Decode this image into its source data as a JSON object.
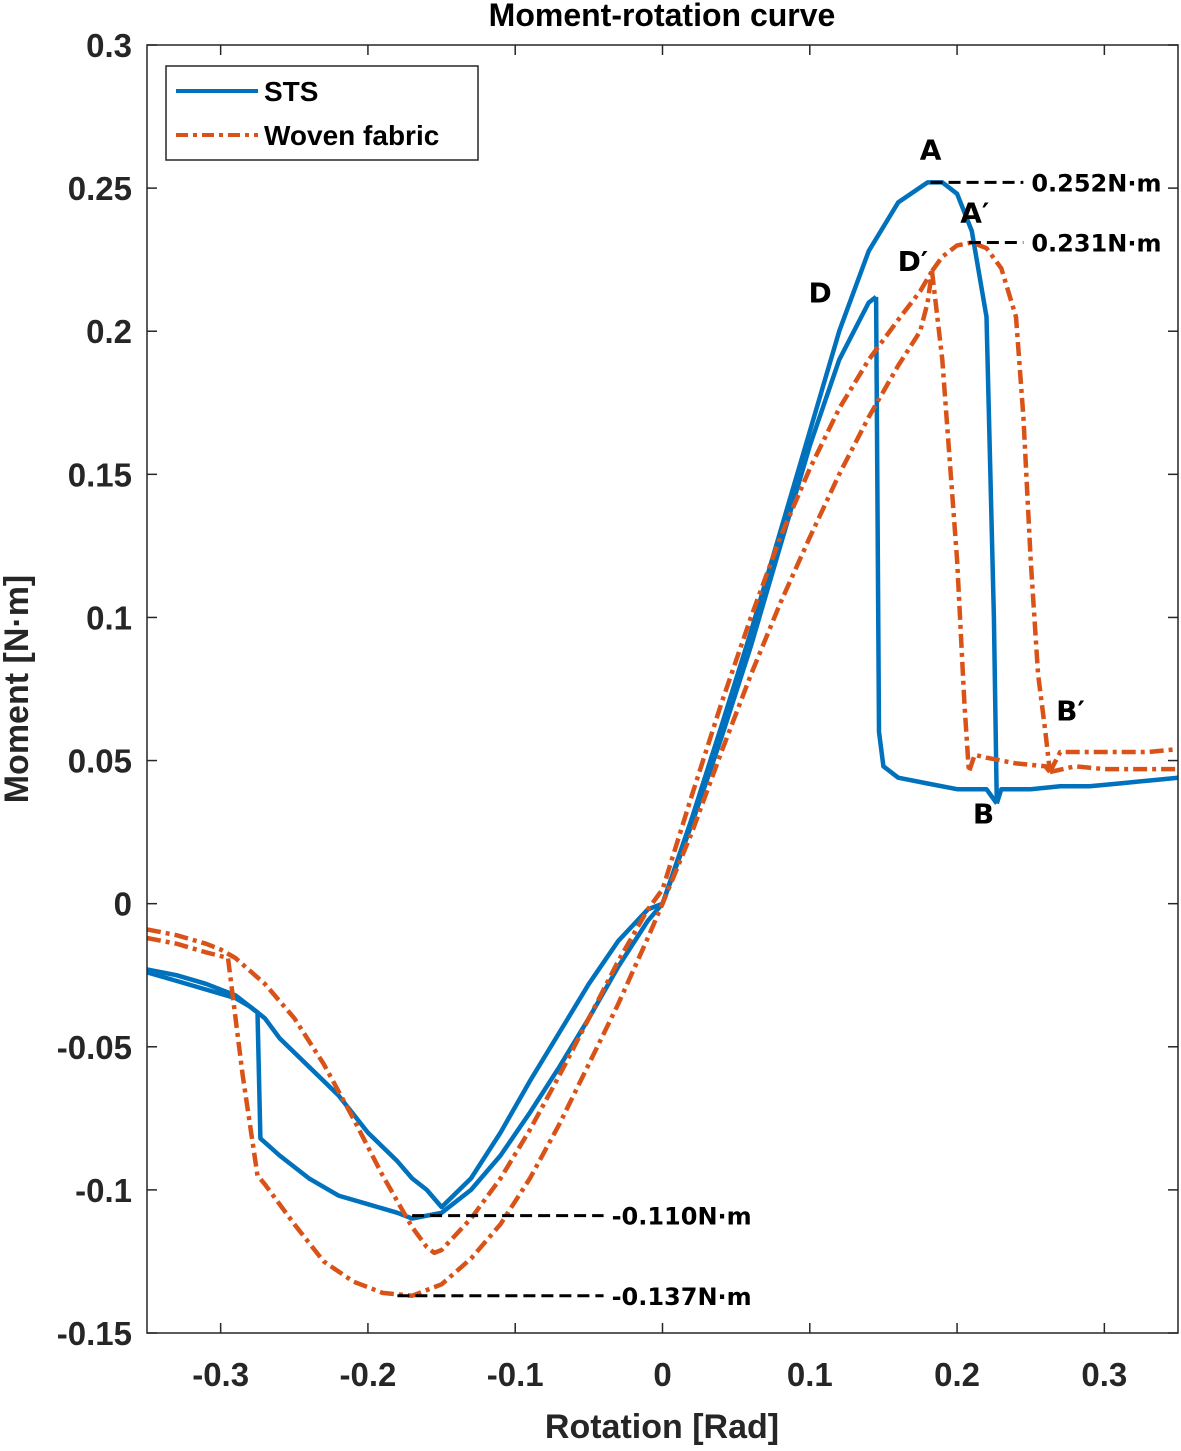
{
  "chart_data": {
    "type": "line",
    "title": "Moment-rotation curve",
    "xlabel": "Rotation [Rad]",
    "ylabel": "Moment [N·m]",
    "xlim": [
      -0.35,
      0.35
    ],
    "ylim": [
      -0.15,
      0.3
    ],
    "xticks": [
      -0.3,
      -0.2,
      -0.1,
      0,
      0.1,
      0.2,
      0.3
    ],
    "xtick_labels": [
      "-0.3",
      "-0.2",
      "-0.1",
      "0",
      "0.1",
      "0.2",
      "0.3"
    ],
    "yticks": [
      -0.15,
      -0.1,
      -0.05,
      0,
      0.05,
      0.1,
      0.15,
      0.2,
      0.25,
      0.3
    ],
    "ytick_labels": [
      "-0.15",
      "-0.1",
      "-0.05",
      "0",
      "0.05",
      "0.1",
      "0.15",
      "0.2",
      "0.25",
      "0.3"
    ],
    "grid": false,
    "legend": {
      "position": "top-left",
      "entries": [
        "STS",
        "Woven fabric"
      ]
    },
    "series": [
      {
        "name": "STS",
        "color": "#0072BD",
        "style": "solid",
        "segments": [
          {
            "x": [
              -0.35,
              -0.33,
              -0.31,
              -0.29,
              -0.28,
              -0.275,
              -0.27,
              -0.26,
              -0.24,
              -0.22,
              -0.2,
              -0.18,
              -0.17,
              -0.16,
              -0.15,
              -0.13,
              -0.11,
              -0.09,
              -0.07,
              -0.05,
              -0.03,
              -0.01,
              0.0,
              0.02,
              0.04,
              0.06,
              0.08,
              0.1,
              0.12,
              0.135,
              0.14,
              0.145
            ],
            "y": [
              -0.023,
              -0.025,
              -0.028,
              -0.032,
              -0.036,
              -0.038,
              -0.04,
              -0.047,
              -0.057,
              -0.067,
              -0.08,
              -0.09,
              -0.096,
              -0.1,
              -0.106,
              -0.096,
              -0.08,
              -0.062,
              -0.045,
              -0.028,
              -0.013,
              -0.002,
              0.0,
              0.028,
              0.058,
              0.09,
              0.125,
              0.16,
              0.19,
              0.205,
              0.21,
              0.212
            ]
          },
          {
            "x": [
              0.145,
              0.147,
              0.15,
              0.16,
              0.18,
              0.2,
              0.22,
              0.227
            ],
            "y": [
              0.212,
              0.06,
              0.048,
              0.044,
              0.042,
              0.04,
              0.04,
              0.035
            ]
          },
          {
            "x": [
              0.227,
              0.23,
              0.25,
              0.27,
              0.29,
              0.31,
              0.33,
              0.35
            ],
            "y": [
              0.035,
              0.04,
              0.04,
              0.041,
              0.041,
              0.042,
              0.043,
              0.044
            ]
          },
          {
            "x": [
              -0.35,
              -0.33,
              -0.31,
              -0.29,
              -0.28,
              -0.275,
              -0.273,
              -0.26,
              -0.24,
              -0.22,
              -0.2,
              -0.18,
              -0.17,
              -0.15,
              -0.13,
              -0.11,
              -0.09,
              -0.07,
              -0.05,
              -0.03,
              -0.01,
              0.0,
              0.02,
              0.04,
              0.06,
              0.08,
              0.1,
              0.12,
              0.14,
              0.16,
              0.18,
              0.19,
              0.2,
              0.21,
              0.22,
              0.225,
              0.227
            ],
            "y": [
              -0.024,
              -0.027,
              -0.03,
              -0.033,
              -0.036,
              -0.038,
              -0.082,
              -0.088,
              -0.096,
              -0.102,
              -0.105,
              -0.108,
              -0.11,
              -0.108,
              -0.1,
              -0.088,
              -0.073,
              -0.057,
              -0.04,
              -0.022,
              -0.006,
              0.0,
              0.03,
              0.062,
              0.095,
              0.13,
              0.165,
              0.2,
              0.228,
              0.245,
              0.252,
              0.252,
              0.248,
              0.235,
              0.205,
              0.1,
              0.035
            ]
          }
        ]
      },
      {
        "name": "Woven fabric",
        "color": "#D95319",
        "style": "dash-dot",
        "segments": [
          {
            "x": [
              -0.35,
              -0.33,
              -0.31,
              -0.3,
              -0.29,
              -0.27,
              -0.25,
              -0.23,
              -0.21,
              -0.19,
              -0.17,
              -0.16,
              -0.155,
              -0.15,
              -0.13,
              -0.11,
              -0.09,
              -0.07,
              -0.05,
              -0.03,
              -0.01,
              0.0,
              0.02,
              0.04,
              0.06,
              0.08,
              0.1,
              0.12,
              0.14,
              0.16,
              0.175,
              0.183
            ],
            "y": [
              -0.009,
              -0.011,
              -0.014,
              -0.016,
              -0.019,
              -0.028,
              -0.04,
              -0.056,
              -0.075,
              -0.095,
              -0.113,
              -0.12,
              -0.122,
              -0.121,
              -0.11,
              -0.096,
              -0.079,
              -0.06,
              -0.04,
              -0.02,
              -0.002,
              0.005,
              0.038,
              0.07,
              0.1,
              0.128,
              0.152,
              0.173,
              0.19,
              0.204,
              0.214,
              0.221
            ]
          },
          {
            "x": [
              0.183,
              0.19,
              0.2,
              0.205,
              0.208,
              0.212,
              0.22,
              0.24,
              0.26,
              0.263
            ],
            "y": [
              0.221,
              0.19,
              0.12,
              0.07,
              0.046,
              0.052,
              0.051,
              0.049,
              0.048,
              0.046
            ]
          },
          {
            "x": [
              0.263,
              0.27,
              0.29,
              0.31,
              0.33,
              0.35
            ],
            "y": [
              0.046,
              0.053,
              0.053,
              0.053,
              0.053,
              0.054
            ]
          },
          {
            "x": [
              -0.35,
              -0.33,
              -0.31,
              -0.295,
              -0.285,
              -0.275,
              -0.27,
              -0.25,
              -0.23,
              -0.21,
              -0.19,
              -0.17,
              -0.15,
              -0.13,
              -0.11,
              -0.09,
              -0.07,
              -0.05,
              -0.03,
              -0.01,
              0.0,
              0.02,
              0.04,
              0.06,
              0.08,
              0.1,
              0.12,
              0.14,
              0.16,
              0.175,
              0.18,
              0.183
            ],
            "y": [
              -0.012,
              -0.014,
              -0.017,
              -0.019,
              -0.06,
              -0.095,
              -0.098,
              -0.112,
              -0.125,
              -0.132,
              -0.136,
              -0.137,
              -0.133,
              -0.124,
              -0.112,
              -0.096,
              -0.077,
              -0.056,
              -0.035,
              -0.012,
              0.0,
              0.025,
              0.053,
              0.08,
              0.105,
              0.128,
              0.15,
              0.17,
              0.188,
              0.2,
              0.21,
              0.221
            ]
          },
          {
            "x": [
              0.183,
              0.19,
              0.2,
              0.21,
              0.22,
              0.23,
              0.24,
              0.245,
              0.25,
              0.255,
              0.26,
              0.263
            ],
            "y": [
              0.221,
              0.226,
              0.23,
              0.231,
              0.229,
              0.222,
              0.205,
              0.17,
              0.12,
              0.08,
              0.06,
              0.046
            ]
          },
          {
            "x": [
              0.263,
              0.28,
              0.3,
              0.32,
              0.35
            ],
            "y": [
              0.046,
              0.048,
              0.047,
              0.047,
              0.047
            ]
          }
        ]
      }
    ],
    "point_labels": [
      {
        "text": "A",
        "x": 0.182,
        "y": 0.26
      },
      {
        "text": "A′",
        "x": 0.212,
        "y": 0.238
      },
      {
        "text": "D",
        "x": 0.107,
        "y": 0.21
      },
      {
        "text": "D′",
        "x": 0.17,
        "y": 0.221
      },
      {
        "text": "B",
        "x": 0.218,
        "y": 0.028
      },
      {
        "text": "B′",
        "x": 0.277,
        "y": 0.064
      }
    ],
    "annotations": [
      {
        "text": "0.252N·m",
        "x_start": 0.182,
        "x_end": 0.245,
        "y": 0.252
      },
      {
        "text": "0.231N·m",
        "x_start": 0.208,
        "x_end": 0.245,
        "y": 0.231
      },
      {
        "text": "-0.110N·m",
        "x_start": -0.17,
        "x_end": -0.04,
        "y": -0.109
      },
      {
        "text": "-0.137N·m",
        "x_start": -0.18,
        "x_end": -0.04,
        "y": -0.137
      }
    ]
  }
}
